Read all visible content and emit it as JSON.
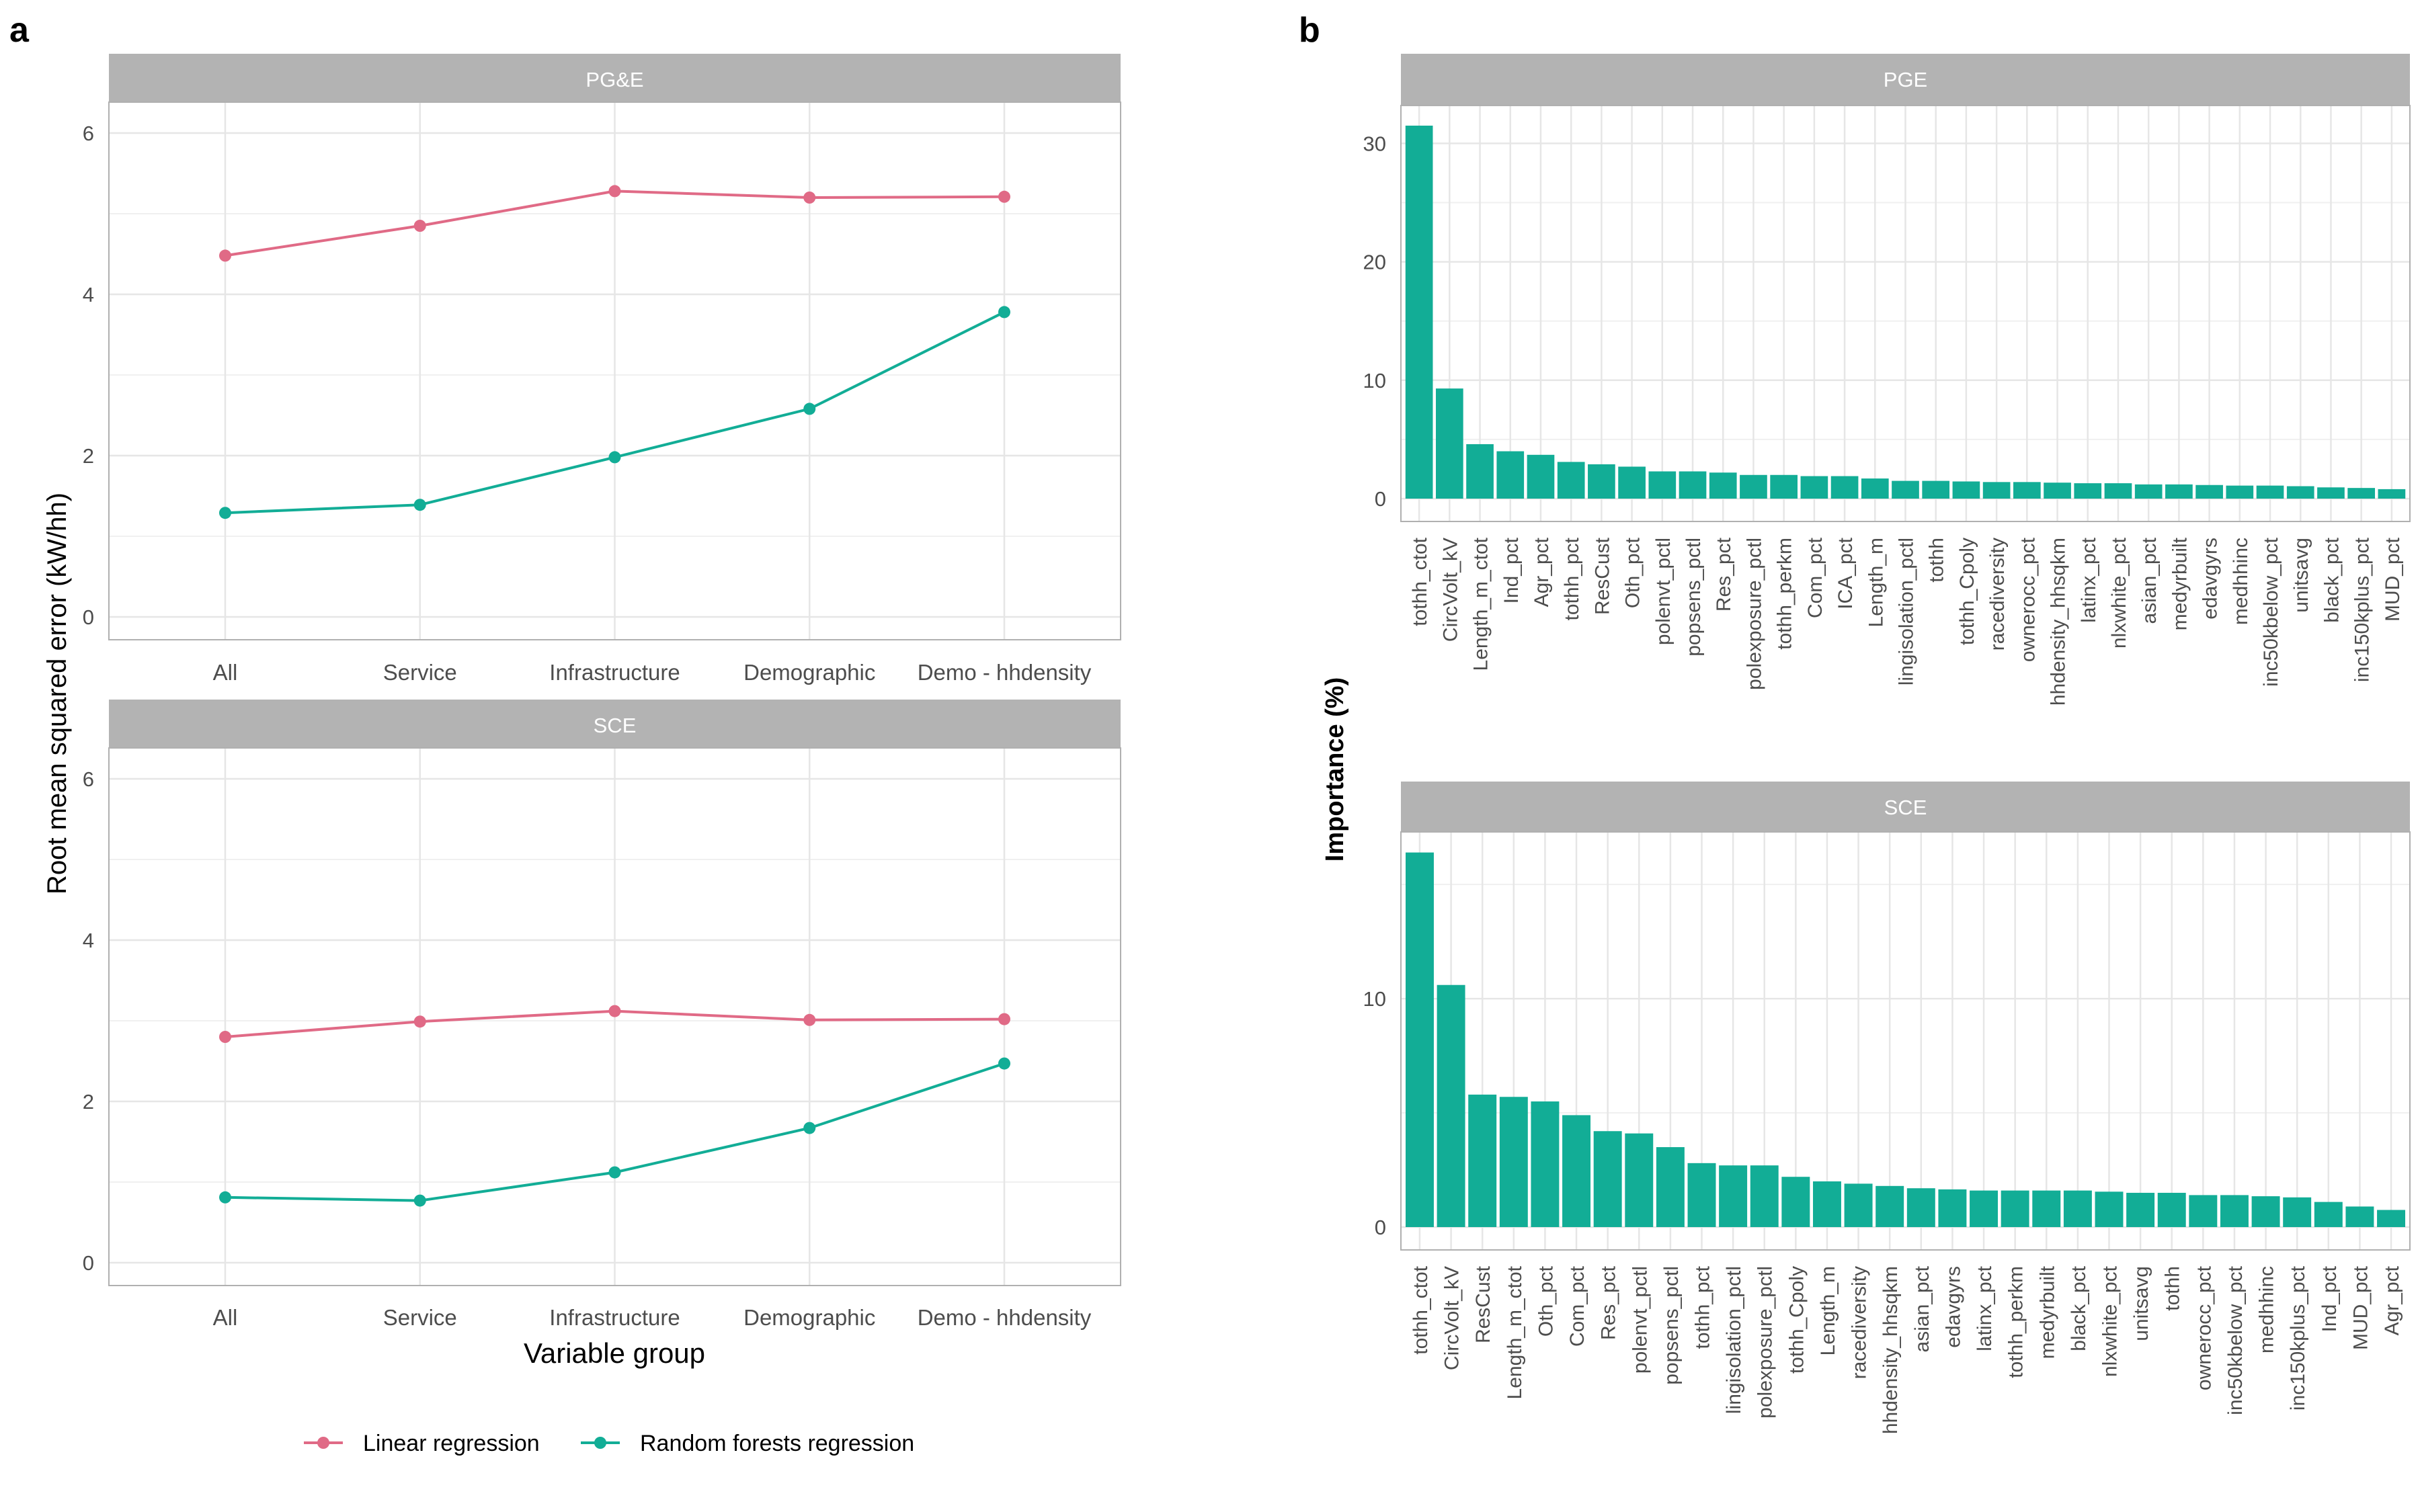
{
  "panel_labels": {
    "a": "a",
    "b": "b"
  },
  "colors": {
    "linear": "#E06A86",
    "forest": "#12AD96",
    "bar": "#12AD96",
    "strip": "#B3B3B3",
    "grid": "#E6E6E6",
    "border": "#B0B0B0"
  },
  "legend": {
    "items": [
      {
        "label": "Linear regression",
        "color": "#E06A86"
      },
      {
        "label": "Random forests regression",
        "color": "#12AD96"
      }
    ]
  },
  "chart_data": [
    {
      "type": "line",
      "strip": "PG&E",
      "categories": [
        "All",
        "Service",
        "Infrastructure",
        "Demographic",
        "Demo - hhdensity"
      ],
      "series": [
        {
          "name": "Linear regression",
          "values": [
            4.48,
            4.85,
            5.28,
            5.2,
            5.21
          ]
        },
        {
          "name": "Random forests regression",
          "values": [
            1.29,
            1.39,
            1.98,
            2.58,
            3.78
          ]
        }
      ],
      "ylim": [
        0,
        6.3
      ],
      "yticks": [
        0,
        2,
        4,
        6
      ],
      "ylabel": "Root mean squared error (kW/hh)",
      "xlabel": "",
      "grid": true
    },
    {
      "type": "line",
      "strip": "SCE",
      "categories": [
        "All",
        "Service",
        "Infrastructure",
        "Demographic",
        "Demo - hhdensity"
      ],
      "series": [
        {
          "name": "Linear regression",
          "values": [
            2.8,
            2.99,
            3.12,
            3.01,
            3.02
          ]
        },
        {
          "name": "Random forests regression",
          "values": [
            0.81,
            0.77,
            1.12,
            1.67,
            2.47
          ]
        }
      ],
      "ylim": [
        0,
        6.3
      ],
      "yticks": [
        0,
        2,
        4,
        6
      ],
      "ylabel": "",
      "xlabel": "Variable group",
      "grid": true
    },
    {
      "type": "bar",
      "strip": "PGE",
      "categories": [
        "tothh_ctot",
        "CircVolt_kV",
        "Length_m_ctot",
        "Ind_pct",
        "Agr_pct",
        "tothh_pct",
        "ResCust",
        "Oth_pct",
        "polenvt_pctl",
        "popsens_pctl",
        "Res_pct",
        "polexposure_pctl",
        "tothh_perkm",
        "Com_pct",
        "ICA_pct",
        "Length_m",
        "lingisolation_pctl",
        "tothh",
        "tothh_Cpoly",
        "racediversity",
        "ownerocc_pct",
        "hhdensity_hhsqkm",
        "latinx_pct",
        "nlxwhite_pct",
        "asian_pct",
        "medyrbuilt",
        "edavgyrs",
        "medhhinc",
        "inc50kbelow_pct",
        "unitsavg",
        "black_pct",
        "inc150kplus_pct",
        "MUD_pct"
      ],
      "values": [
        31.5,
        9.3,
        4.6,
        4.0,
        3.7,
        3.1,
        2.9,
        2.7,
        2.3,
        2.3,
        2.2,
        2.0,
        2.0,
        1.9,
        1.9,
        1.7,
        1.5,
        1.5,
        1.45,
        1.4,
        1.4,
        1.35,
        1.3,
        1.3,
        1.2,
        1.2,
        1.15,
        1.1,
        1.1,
        1.05,
        0.95,
        0.9,
        0.8
      ],
      "ylim": [
        0,
        33.2
      ],
      "yticks": [
        0,
        10,
        20,
        30
      ],
      "ylabel": "Importance (%)",
      "grid": true
    },
    {
      "type": "bar",
      "strip": "SCE",
      "categories": [
        "tothh_ctot",
        "CircVolt_kV",
        "ResCust",
        "Length_m_ctot",
        "Oth_pct",
        "Com_pct",
        "Res_pct",
        "polenvt_pctl",
        "popsens_pctl",
        "tothh_pct",
        "lingisolation_pctl",
        "polexposure_pctl",
        "tothh_Cpoly",
        "Length_m",
        "racediversity",
        "hhdensity_hhsqkm",
        "asian_pct",
        "edavgyrs",
        "latinx_pct",
        "tothh_perkm",
        "medyrbuilt",
        "black_pct",
        "nlxwhite_pct",
        "unitsavg",
        "tothh",
        "ownerocc_pct",
        "inc50kbelow_pct",
        "medhhinc",
        "inc150kplus_pct",
        "Ind_pct",
        "MUD_pct",
        "Agr_pct"
      ],
      "values": [
        16.4,
        10.6,
        5.8,
        5.7,
        5.5,
        4.9,
        4.2,
        4.1,
        3.5,
        2.8,
        2.7,
        2.7,
        2.2,
        2.0,
        1.9,
        1.8,
        1.7,
        1.65,
        1.6,
        1.6,
        1.6,
        1.6,
        1.55,
        1.5,
        1.5,
        1.4,
        1.4,
        1.35,
        1.3,
        1.1,
        0.9,
        0.75
      ],
      "ylim": [
        0,
        17.3
      ],
      "yticks": [
        0,
        10
      ],
      "ylabel": "",
      "grid": true
    }
  ]
}
